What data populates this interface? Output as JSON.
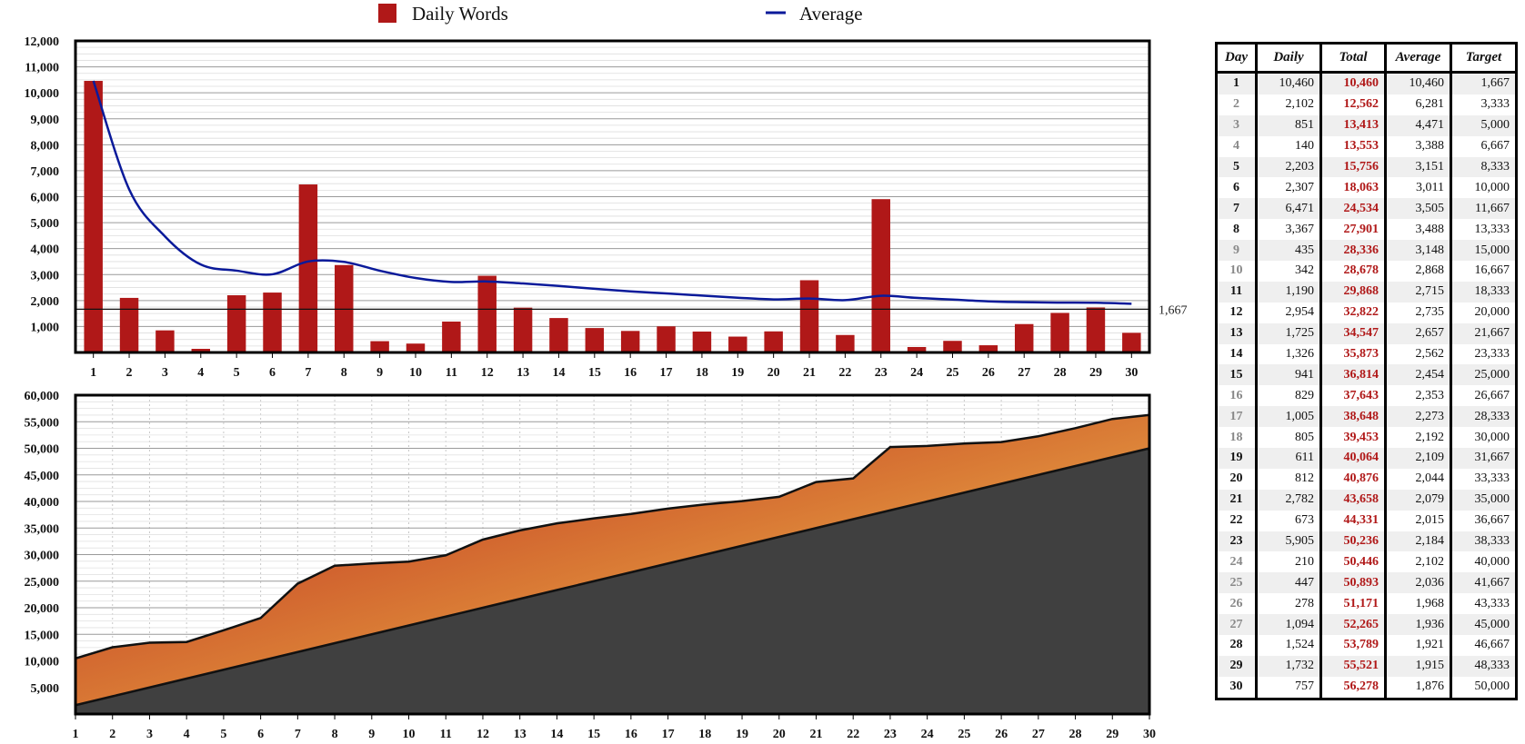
{
  "legend": {
    "bar_label": "Daily Words",
    "line_label": "Average"
  },
  "target_label": "1,667",
  "colors": {
    "bar": "#b01818",
    "average": "#0a1a9a",
    "cumulative_top": "#fbdc5e",
    "cumulative_bottom": "#b81c1c",
    "target_area": "#404040"
  },
  "chart_data": [
    {
      "type": "bar",
      "categories": [
        1,
        2,
        3,
        4,
        5,
        6,
        7,
        8,
        9,
        10,
        11,
        12,
        13,
        14,
        15,
        16,
        17,
        18,
        19,
        20,
        21,
        22,
        23,
        24,
        25,
        26,
        27,
        28,
        29,
        30
      ],
      "series": [
        {
          "name": "Daily Words",
          "type": "bar",
          "values": [
            10460,
            2102,
            851,
            140,
            2203,
            2307,
            6471,
            3367,
            435,
            342,
            1190,
            2954,
            1725,
            1326,
            941,
            829,
            1005,
            805,
            611,
            812,
            2782,
            673,
            5905,
            210,
            447,
            278,
            1094,
            1524,
            1732,
            757
          ]
        },
        {
          "name": "Average",
          "type": "line",
          "values": [
            10460,
            6281,
            4471,
            3388,
            3151,
            3011,
            3505,
            3488,
            3148,
            2868,
            2715,
            2735,
            2657,
            2562,
            2454,
            2353,
            2273,
            2192,
            2109,
            2044,
            2079,
            2015,
            2184,
            2102,
            2036,
            1968,
            1936,
            1921,
            1915,
            1876
          ]
        }
      ],
      "reference_line": 1667,
      "ylim": [
        0,
        12000
      ],
      "yticks": [
        "1,000",
        "2,000",
        "3,000",
        "4,000",
        "5,000",
        "6,000",
        "7,000",
        "8,000",
        "9,000",
        "10,000",
        "11,000",
        "12,000"
      ],
      "grid": true,
      "legend_position": "top"
    },
    {
      "type": "area",
      "x": [
        1,
        2,
        3,
        4,
        5,
        6,
        7,
        8,
        9,
        10,
        11,
        12,
        13,
        14,
        15,
        16,
        17,
        18,
        19,
        20,
        21,
        22,
        23,
        24,
        25,
        26,
        27,
        28,
        29,
        30
      ],
      "series": [
        {
          "values": [
            10460,
            12562,
            13413,
            13553,
            15756,
            18063,
            24534,
            27901,
            28336,
            28678,
            29868,
            32822,
            34547,
            35873,
            36814,
            37643,
            38648,
            39453,
            40064,
            40876,
            43658,
            44331,
            50236,
            50446,
            50893,
            51171,
            52265,
            53789,
            55521,
            56278
          ]
        },
        {
          "values": [
            1667,
            3333,
            5000,
            6667,
            8333,
            10000,
            11667,
            13333,
            15000,
            16667,
            18333,
            20000,
            21667,
            23333,
            25000,
            26667,
            28333,
            30000,
            31667,
            33333,
            35000,
            36667,
            38333,
            40000,
            41667,
            43333,
            45000,
            46667,
            48333,
            50000
          ]
        }
      ],
      "ylim": [
        0,
        60000
      ],
      "yticks": [
        "5,000",
        "10,000",
        "15,000",
        "20,000",
        "25,000",
        "30,000",
        "35,000",
        "40,000",
        "45,000",
        "50,000",
        "55,000",
        "60,000"
      ],
      "grid": true
    }
  ],
  "table": {
    "headers": [
      "Day",
      "Daily",
      "Total",
      "Average",
      "Target"
    ],
    "rows": [
      [
        "1",
        "10,460",
        "10,460",
        "10,460",
        "1,667"
      ],
      [
        "2",
        "2,102",
        "12,562",
        "6,281",
        "3,333"
      ],
      [
        "3",
        "851",
        "13,413",
        "4,471",
        "5,000"
      ],
      [
        "4",
        "140",
        "13,553",
        "3,388",
        "6,667"
      ],
      [
        "5",
        "2,203",
        "15,756",
        "3,151",
        "8,333"
      ],
      [
        "6",
        "2,307",
        "18,063",
        "3,011",
        "10,000"
      ],
      [
        "7",
        "6,471",
        "24,534",
        "3,505",
        "11,667"
      ],
      [
        "8",
        "3,367",
        "27,901",
        "3,488",
        "13,333"
      ],
      [
        "9",
        "435",
        "28,336",
        "3,148",
        "15,000"
      ],
      [
        "10",
        "342",
        "28,678",
        "2,868",
        "16,667"
      ],
      [
        "11",
        "1,190",
        "29,868",
        "2,715",
        "18,333"
      ],
      [
        "12",
        "2,954",
        "32,822",
        "2,735",
        "20,000"
      ],
      [
        "13",
        "1,725",
        "34,547",
        "2,657",
        "21,667"
      ],
      [
        "14",
        "1,326",
        "35,873",
        "2,562",
        "23,333"
      ],
      [
        "15",
        "941",
        "36,814",
        "2,454",
        "25,000"
      ],
      [
        "16",
        "829",
        "37,643",
        "2,353",
        "26,667"
      ],
      [
        "17",
        "1,005",
        "38,648",
        "2,273",
        "28,333"
      ],
      [
        "18",
        "805",
        "39,453",
        "2,192",
        "30,000"
      ],
      [
        "19",
        "611",
        "40,064",
        "2,109",
        "31,667"
      ],
      [
        "20",
        "812",
        "40,876",
        "2,044",
        "33,333"
      ],
      [
        "21",
        "2,782",
        "43,658",
        "2,079",
        "35,000"
      ],
      [
        "22",
        "673",
        "44,331",
        "2,015",
        "36,667"
      ],
      [
        "23",
        "5,905",
        "50,236",
        "2,184",
        "38,333"
      ],
      [
        "24",
        "210",
        "50,446",
        "2,102",
        "40,000"
      ],
      [
        "25",
        "447",
        "50,893",
        "2,036",
        "41,667"
      ],
      [
        "26",
        "278",
        "51,171",
        "1,968",
        "43,333"
      ],
      [
        "27",
        "1,094",
        "52,265",
        "1,936",
        "45,000"
      ],
      [
        "28",
        "1,524",
        "53,789",
        "1,921",
        "46,667"
      ],
      [
        "29",
        "1,732",
        "55,521",
        "1,915",
        "48,333"
      ],
      [
        "30",
        "757",
        "56,278",
        "1,876",
        "50,000"
      ]
    ]
  }
}
